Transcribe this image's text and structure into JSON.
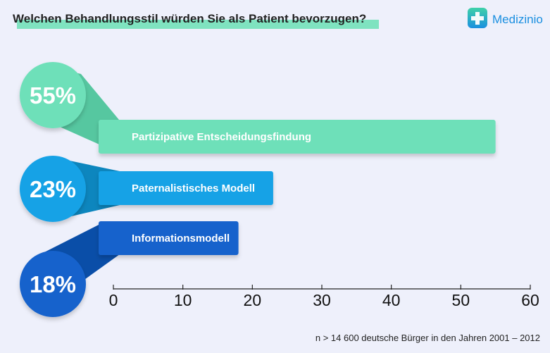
{
  "brand": {
    "name": "Medizinio",
    "icon": "medical-cross-icon",
    "icon_color_top": "#3fd1a8",
    "icon_color_bottom": "#1a8fe0"
  },
  "footnote": "n > 14 600 deutsche Bürger in den Jahren 2001 – 2012",
  "colors": {
    "background": "#eef0fb",
    "title_underline": "#7fe3c0"
  },
  "chart_data": {
    "type": "bar",
    "orientation": "horizontal",
    "title": "Welchen Behandlungsstil würden Sie als Patient bevorzugen?",
    "xlabel": "",
    "ylabel": "",
    "xlim": [
      0,
      60
    ],
    "x_ticks": [
      0,
      10,
      20,
      30,
      40,
      50,
      60
    ],
    "grid": false,
    "categories": [
      "Partizipative Entscheidungsfindung",
      "Paternalistisches Modell",
      "Informationsmodell"
    ],
    "values": [
      55,
      23,
      18
    ],
    "value_labels": [
      "55%",
      "23%",
      "18%"
    ],
    "bar_colors": [
      "#6ee0b9",
      "#15a2e6",
      "#1462cc"
    ],
    "circle_colors": [
      "#6ee0b9",
      "#15a2e6",
      "#1462cc"
    ],
    "ribbon_colors": [
      "#56c7a0",
      "#0d86be",
      "#0a4ea8"
    ]
  }
}
